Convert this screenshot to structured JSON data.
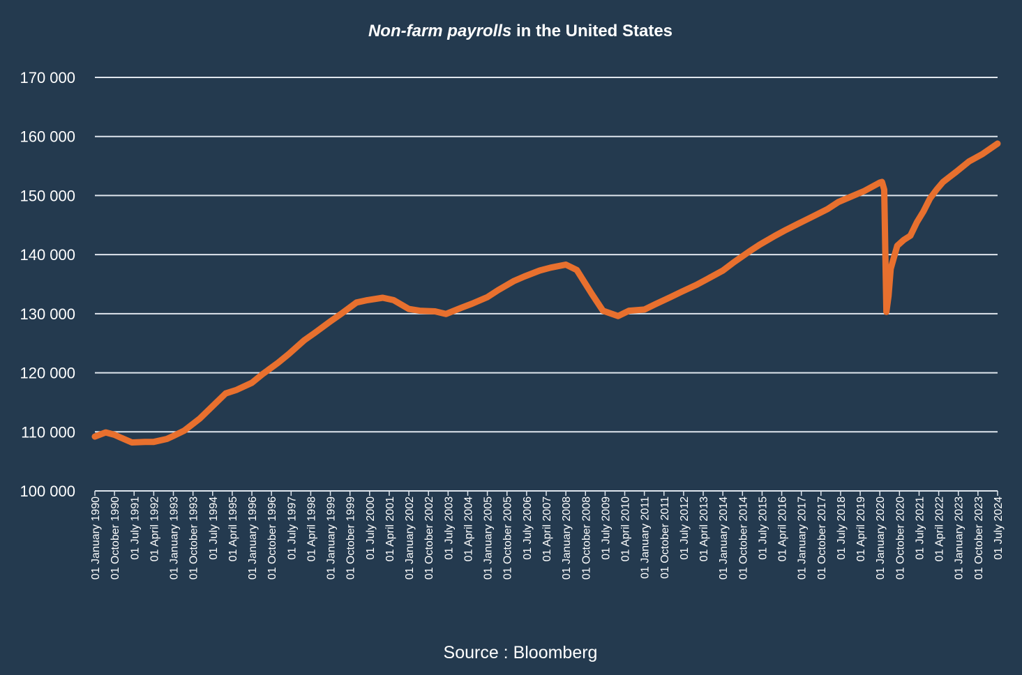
{
  "chart_data": {
    "type": "line",
    "title_italic": "Non-farm payrolls",
    "title_rest": " in the United States",
    "source": "Source : Bloomberg",
    "xlabel": "",
    "ylabel": "",
    "ylim": [
      100000,
      170000
    ],
    "y_ticks": [
      100000,
      110000,
      120000,
      130000,
      140000,
      150000,
      160000,
      170000
    ],
    "y_tick_labels": [
      "100 000",
      "110 000",
      "120 000",
      "130 000",
      "140 000",
      "150 000",
      "160 000",
      "170 000"
    ],
    "x_range": [
      "1990-01",
      "2024-07"
    ],
    "x_ticks": [
      "1990-01",
      "1990-10",
      "1991-07",
      "1992-04",
      "1993-01",
      "1993-10",
      "1994-07",
      "1995-04",
      "1996-01",
      "1996-10",
      "1997-07",
      "1998-04",
      "1999-01",
      "1999-10",
      "2000-07",
      "2001-04",
      "2002-01",
      "2002-10",
      "2003-07",
      "2004-04",
      "2005-01",
      "2005-10",
      "2006-07",
      "2007-04",
      "2008-01",
      "2008-10",
      "2009-07",
      "2010-04",
      "2011-01",
      "2011-10",
      "2012-07",
      "2013-04",
      "2014-01",
      "2014-10",
      "2015-07",
      "2016-04",
      "2017-01",
      "2017-10",
      "2018-07",
      "2019-04",
      "2020-01",
      "2020-10",
      "2021-07",
      "2022-04",
      "2023-01",
      "2023-10",
      "2024-07"
    ],
    "x_tick_labels": [
      "01 January 1990",
      "01 October 1990",
      "01 July 1991",
      "01 April 1992",
      "01 January 1993",
      "01 October 1993",
      "01 July 1994",
      "01 April 1995",
      "01 January 1996",
      "01 October 1996",
      "01 July 1997",
      "01 April 1998",
      "01 January 1999",
      "01 October 1999",
      "01 July 2000",
      "01 April 2001",
      "01 January 2002",
      "01 October 2002",
      "01 July 2003",
      "01 April 2004",
      "01 January 2005",
      "01 October 2005",
      "01 July 2006",
      "01 April 2007",
      "01 January 2008",
      "01 October 2008",
      "01 July 2009",
      "01 April 2010",
      "01 January 2011",
      "01 October 2011",
      "01 July 2012",
      "01 April 2013",
      "01 January 2014",
      "01 October 2014",
      "01 July 2015",
      "01 April 2016",
      "01 January 2017",
      "01 October 2017",
      "01 July 2018",
      "01 April 2019",
      "01 January 2020",
      "01 October 2020",
      "01 July 2021",
      "01 April 2022",
      "01 January 2023",
      "01 October 2023",
      "01 July 2024"
    ],
    "grid": true,
    "colors": {
      "background": "#243a4f",
      "line": "#e8702e",
      "grid": "#dfe6ee",
      "text": "#ffffff"
    },
    "series": [
      {
        "name": "",
        "points": [
          [
            "1990-01",
            109200
          ],
          [
            "1990-06",
            109900
          ],
          [
            "1990-10",
            109500
          ],
          [
            "1991-01",
            109000
          ],
          [
            "1991-06",
            108200
          ],
          [
            "1991-12",
            108300
          ],
          [
            "1992-04",
            108300
          ],
          [
            "1992-10",
            108800
          ],
          [
            "1993-01",
            109300
          ],
          [
            "1993-06",
            110200
          ],
          [
            "1994-01",
            112200
          ],
          [
            "1994-06",
            114000
          ],
          [
            "1995-01",
            116500
          ],
          [
            "1995-06",
            117100
          ],
          [
            "1996-01",
            118300
          ],
          [
            "1996-06",
            119800
          ],
          [
            "1997-01",
            121700
          ],
          [
            "1997-06",
            123200
          ],
          [
            "1998-01",
            125500
          ],
          [
            "1998-06",
            126800
          ],
          [
            "1999-01",
            128700
          ],
          [
            "1999-06",
            130000
          ],
          [
            "2000-01",
            131900
          ],
          [
            "2000-06",
            132300
          ],
          [
            "2001-01",
            132700
          ],
          [
            "2001-06",
            132300
          ],
          [
            "2002-01",
            130800
          ],
          [
            "2002-06",
            130500
          ],
          [
            "2003-01",
            130400
          ],
          [
            "2003-06",
            129950
          ],
          [
            "2004-01",
            131000
          ],
          [
            "2004-06",
            131700
          ],
          [
            "2005-01",
            132800
          ],
          [
            "2005-06",
            134000
          ],
          [
            "2006-01",
            135500
          ],
          [
            "2006-06",
            136300
          ],
          [
            "2007-01",
            137300
          ],
          [
            "2007-06",
            137800
          ],
          [
            "2008-01",
            138300
          ],
          [
            "2008-06",
            137400
          ],
          [
            "2009-01",
            133300
          ],
          [
            "2009-06",
            130500
          ],
          [
            "2010-01",
            129600
          ],
          [
            "2010-06",
            130500
          ],
          [
            "2011-01",
            130700
          ],
          [
            "2011-06",
            131600
          ],
          [
            "2012-01",
            132800
          ],
          [
            "2012-06",
            133700
          ],
          [
            "2013-01",
            134900
          ],
          [
            "2013-06",
            135900
          ],
          [
            "2014-01",
            137300
          ],
          [
            "2014-06",
            138700
          ],
          [
            "2015-01",
            140500
          ],
          [
            "2015-06",
            141700
          ],
          [
            "2016-01",
            143200
          ],
          [
            "2016-06",
            144200
          ],
          [
            "2017-01",
            145500
          ],
          [
            "2017-06",
            146400
          ],
          [
            "2018-01",
            147700
          ],
          [
            "2018-06",
            148900
          ],
          [
            "2019-01",
            150000
          ],
          [
            "2019-06",
            150800
          ],
          [
            "2020-01",
            152200
          ],
          [
            "2020-02",
            152300
          ],
          [
            "2020-03",
            151000
          ],
          [
            "2020-04",
            130300
          ],
          [
            "2020-05",
            133000
          ],
          [
            "2020-06",
            137600
          ],
          [
            "2020-09",
            141500
          ],
          [
            "2020-12",
            142500
          ],
          [
            "2021-03",
            143200
          ],
          [
            "2021-06",
            145500
          ],
          [
            "2021-09",
            147300
          ],
          [
            "2021-12",
            149500
          ],
          [
            "2022-03",
            151000
          ],
          [
            "2022-06",
            152300
          ],
          [
            "2022-12",
            154000
          ],
          [
            "2023-06",
            155800
          ],
          [
            "2023-12",
            157000
          ],
          [
            "2024-07",
            158800
          ]
        ]
      }
    ]
  }
}
